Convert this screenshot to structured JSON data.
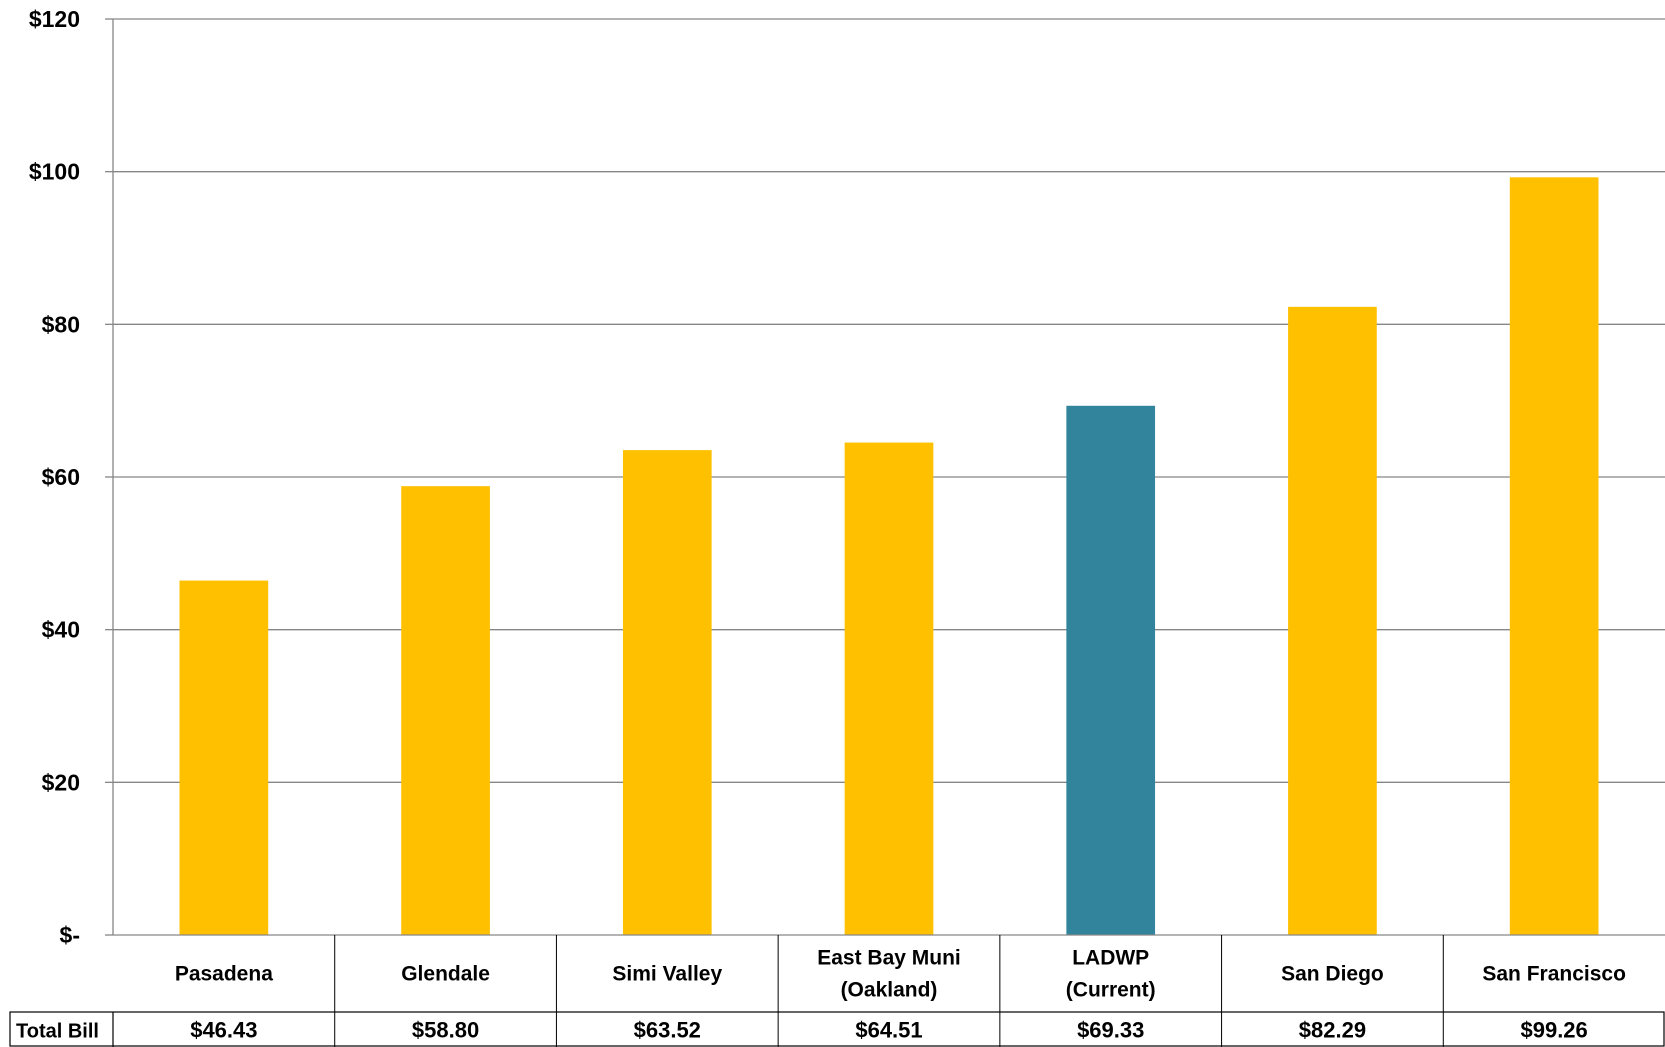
{
  "chart_data": {
    "type": "bar",
    "title": "",
    "xlabel": "",
    "ylabel": "",
    "ylim": [
      0,
      120
    ],
    "yticks": [
      {
        "value": 0,
        "label": "$-"
      },
      {
        "value": 20,
        "label": "$20"
      },
      {
        "value": 40,
        "label": "$40"
      },
      {
        "value": 60,
        "label": "$60"
      },
      {
        "value": 80,
        "label": "$80"
      },
      {
        "value": 100,
        "label": "$100"
      },
      {
        "value": 120,
        "label": "$120"
      }
    ],
    "grid": true,
    "categories": [
      [
        "Pasadena"
      ],
      [
        "Glendale"
      ],
      [
        "Simi Valley"
      ],
      [
        "East Bay Muni",
        "(Oakland)"
      ],
      [
        "LADWP",
        "(Current)"
      ],
      [
        "San Diego"
      ],
      [
        "San Francisco"
      ]
    ],
    "values": [
      46.43,
      58.8,
      63.52,
      64.51,
      69.33,
      82.29,
      99.26
    ],
    "bar_colors": [
      "#FFC000",
      "#FFC000",
      "#FFC000",
      "#FFC000",
      "#31849B",
      "#FFC000",
      "#FFC000"
    ],
    "data_table": {
      "row_label": "Total Bill",
      "values": [
        "$46.43",
        "$58.80",
        "$63.52",
        "$64.51",
        "$69.33",
        "$82.29",
        "$99.26"
      ]
    }
  }
}
